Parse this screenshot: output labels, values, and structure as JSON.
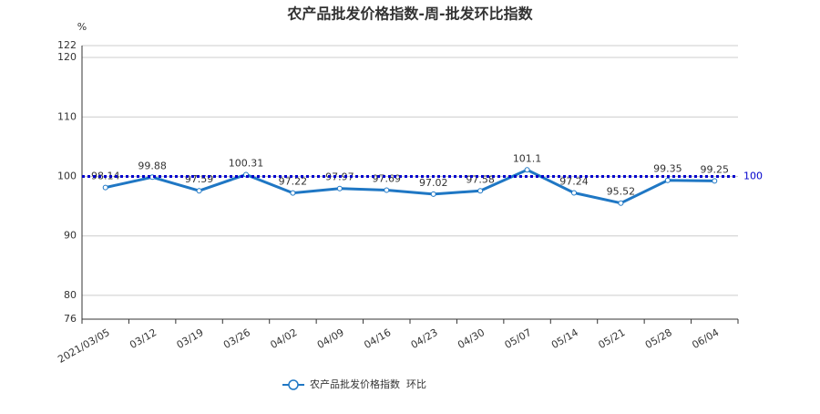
{
  "chart_data": {
    "type": "line",
    "title": "农产品批发价格指数-周-批发环比指数",
    "y_unit": "%",
    "categories": [
      "2021/03/05",
      "03/12",
      "03/19",
      "03/26",
      "04/02",
      "04/09",
      "04/16",
      "04/23",
      "04/30",
      "05/07",
      "05/14",
      "05/21",
      "05/28",
      "06/04"
    ],
    "series": [
      {
        "name": "农产品批发价格指数  环比",
        "color": "#1f77c4",
        "values": [
          98.14,
          99.88,
          97.59,
          100.31,
          97.22,
          97.97,
          97.69,
          97.02,
          97.58,
          101.1,
          97.24,
          95.52,
          99.35,
          99.25
        ]
      }
    ],
    "ylim": [
      76,
      122
    ],
    "yticks": [
      76,
      80,
      90,
      100,
      110,
      120,
      122
    ],
    "grid": true,
    "reference_line": 100,
    "reference_color": "#0000cc",
    "legend": "bottom"
  }
}
